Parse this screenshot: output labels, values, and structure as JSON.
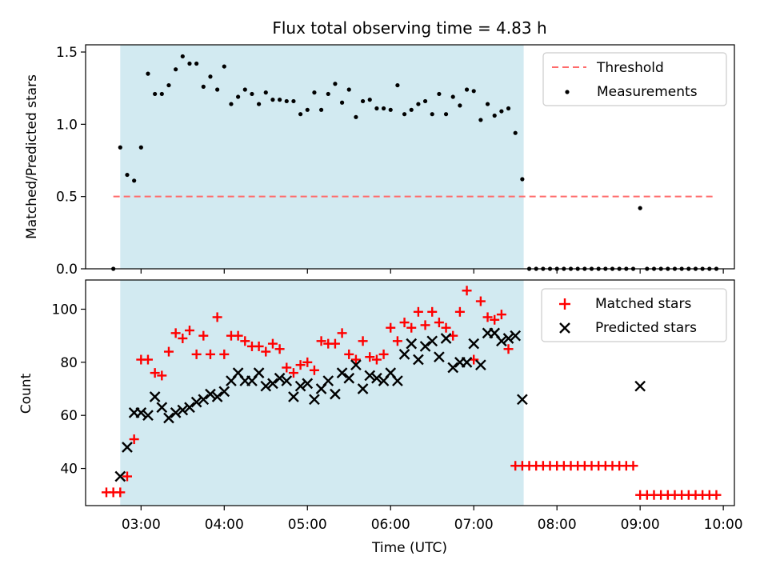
{
  "title": "Flux total observing time = 4.83 h",
  "xlabel": "Time (UTC)",
  "x_ticks": [
    "03:00",
    "04:00",
    "05:00",
    "06:00",
    "07:00",
    "08:00",
    "09:00",
    "10:00"
  ],
  "colors": {
    "shade": "#add8e6",
    "threshold": "#ff6b6b",
    "measurements": "#000000",
    "matched": "#ff0000",
    "predicted": "#000000"
  },
  "chart_data": [
    {
      "type": "scatter",
      "ylabel": "Matched/Predicted stars",
      "xlim": [
        "02:20",
        "10:08"
      ],
      "ylim": [
        0,
        1.55
      ],
      "y_ticks": [
        "0.0",
        "0.5",
        "1.0",
        "1.5"
      ],
      "shaded_span": [
        "02:45",
        "07:36"
      ],
      "legend": {
        "placement": "top-right",
        "entries": [
          "Threshold",
          "Measurements"
        ]
      },
      "threshold": {
        "name": "Threshold",
        "y": 0.5,
        "x_range": [
          "02:40",
          "09:55"
        ],
        "style": "dashed"
      },
      "series": [
        {
          "name": "Measurements",
          "marker": "dot",
          "x": [
            "02:40",
            "02:45",
            "02:50",
            "02:55",
            "03:00",
            "03:05",
            "03:10",
            "03:15",
            "03:20",
            "03:25",
            "03:30",
            "03:35",
            "03:40",
            "03:45",
            "03:50",
            "03:55",
            "04:00",
            "04:05",
            "04:10",
            "04:15",
            "04:20",
            "04:25",
            "04:30",
            "04:35",
            "04:40",
            "04:45",
            "04:50",
            "04:55",
            "05:00",
            "05:05",
            "05:10",
            "05:15",
            "05:20",
            "05:25",
            "05:30",
            "05:35",
            "05:40",
            "05:45",
            "05:50",
            "05:55",
            "06:00",
            "06:05",
            "06:10",
            "06:15",
            "06:20",
            "06:25",
            "06:30",
            "06:35",
            "06:40",
            "06:45",
            "06:50",
            "06:55",
            "07:00",
            "07:05",
            "07:10",
            "07:15",
            "07:20",
            "07:25",
            "07:30",
            "07:35",
            "07:40",
            "07:45",
            "07:50",
            "07:55",
            "08:00",
            "08:05",
            "08:10",
            "08:15",
            "08:20",
            "08:25",
            "08:30",
            "08:35",
            "08:40",
            "08:45",
            "08:50",
            "08:55",
            "09:00",
            "09:05",
            "09:10",
            "09:15",
            "09:20",
            "09:25",
            "09:30",
            "09:35",
            "09:40",
            "09:45",
            "09:50",
            "09:55"
          ],
          "y": [
            0.0,
            0.84,
            0.65,
            0.61,
            0.84,
            1.35,
            1.21,
            1.21,
            1.27,
            1.38,
            1.47,
            1.42,
            1.42,
            1.26,
            1.33,
            1.24,
            1.4,
            1.14,
            1.19,
            1.24,
            1.21,
            1.14,
            1.22,
            1.17,
            1.17,
            1.16,
            1.16,
            1.07,
            1.1,
            1.22,
            1.1,
            1.21,
            1.28,
            1.15,
            1.24,
            1.05,
            1.16,
            1.17,
            1.11,
            1.11,
            1.1,
            1.27,
            1.07,
            1.1,
            1.14,
            1.16,
            1.07,
            1.21,
            1.07,
            1.19,
            1.13,
            1.24,
            1.23,
            1.03,
            1.14,
            1.06,
            1.09,
            1.11,
            0.94,
            0.62,
            0.0,
            0.0,
            0.0,
            0.0,
            0.0,
            0.0,
            0.0,
            0.0,
            0.0,
            0.0,
            0.0,
            0.0,
            0.0,
            0.0,
            0.0,
            0.0,
            0.42,
            0.0,
            0.0,
            0.0,
            0.0,
            0.0,
            0.0,
            0.0,
            0.0,
            0.0,
            0.0,
            0.0
          ]
        }
      ]
    },
    {
      "type": "scatter",
      "ylabel": "Count",
      "xlim": [
        "02:20",
        "10:08"
      ],
      "ylim": [
        26,
        111
      ],
      "y_ticks": [
        "40",
        "60",
        "80",
        "100"
      ],
      "shaded_span": [
        "02:45",
        "07:36"
      ],
      "legend": {
        "placement": "top-right",
        "entries": [
          "Matched stars",
          "Predicted stars"
        ]
      },
      "series": [
        {
          "name": "Matched stars",
          "marker": "plus",
          "x": [
            "02:35",
            "02:40",
            "02:45",
            "02:50",
            "02:55",
            "03:00",
            "03:05",
            "03:10",
            "03:15",
            "03:20",
            "03:25",
            "03:30",
            "03:35",
            "03:40",
            "03:45",
            "03:50",
            "03:55",
            "04:00",
            "04:05",
            "04:10",
            "04:15",
            "04:20",
            "04:25",
            "04:30",
            "04:35",
            "04:40",
            "04:45",
            "04:50",
            "04:55",
            "05:00",
            "05:05",
            "05:10",
            "05:15",
            "05:20",
            "05:25",
            "05:30",
            "05:35",
            "05:40",
            "05:45",
            "05:50",
            "05:55",
            "06:00",
            "06:05",
            "06:10",
            "06:15",
            "06:20",
            "06:25",
            "06:30",
            "06:35",
            "06:40",
            "06:45",
            "06:50",
            "06:55",
            "07:00",
            "07:05",
            "07:10",
            "07:15",
            "07:20",
            "07:25",
            "07:30",
            "07:35",
            "07:40",
            "07:45",
            "07:50",
            "07:55",
            "08:00",
            "08:05",
            "08:10",
            "08:15",
            "08:20",
            "08:25",
            "08:30",
            "08:35",
            "08:40",
            "08:45",
            "08:50",
            "08:55",
            "09:00",
            "09:05",
            "09:10",
            "09:15",
            "09:20",
            "09:25",
            "09:30",
            "09:35",
            "09:40",
            "09:45",
            "09:50",
            "09:55"
          ],
          "y": [
            31,
            31,
            31,
            37,
            51,
            81,
            81,
            76,
            75,
            84,
            91,
            89,
            92,
            83,
            90,
            83,
            97,
            83,
            90,
            90,
            88,
            86,
            86,
            84,
            87,
            85,
            78,
            76,
            79,
            80,
            77,
            88,
            87,
            87,
            91,
            83,
            81,
            88,
            82,
            81,
            83,
            93,
            88,
            95,
            93,
            99,
            94,
            99,
            95,
            93,
            90,
            99,
            107,
            81,
            103,
            97,
            96,
            98,
            85,
            41,
            41,
            41,
            41,
            41,
            41,
            41,
            41,
            41,
            41,
            41,
            41,
            41,
            41,
            41,
            41,
            41,
            41,
            30,
            30,
            30,
            30,
            30,
            30,
            30,
            30,
            30,
            30,
            30,
            30
          ],
          "note_x_start": "02:35"
        },
        {
          "name": "Predicted stars",
          "marker": "x",
          "x": [
            "02:45",
            "02:50",
            "02:55",
            "03:00",
            "03:05",
            "03:10",
            "03:15",
            "03:20",
            "03:25",
            "03:30",
            "03:35",
            "03:40",
            "03:45",
            "03:50",
            "03:55",
            "04:00",
            "04:05",
            "04:10",
            "04:15",
            "04:20",
            "04:25",
            "04:30",
            "04:35",
            "04:40",
            "04:45",
            "04:50",
            "04:55",
            "05:00",
            "05:05",
            "05:10",
            "05:15",
            "05:20",
            "05:25",
            "05:30",
            "05:35",
            "05:40",
            "05:45",
            "05:50",
            "05:55",
            "06:00",
            "06:05",
            "06:10",
            "06:15",
            "06:20",
            "06:25",
            "06:30",
            "06:35",
            "06:40",
            "06:45",
            "06:50",
            "06:55",
            "07:00",
            "07:05",
            "07:10",
            "07:15",
            "07:20",
            "07:25",
            "07:30",
            "07:35",
            "09:00"
          ],
          "y": [
            37,
            48,
            61,
            61,
            60,
            67,
            63,
            59,
            61,
            62,
            63,
            65,
            66,
            68,
            67,
            69,
            73,
            76,
            73,
            73,
            76,
            71,
            72,
            74,
            73,
            67,
            71,
            72,
            66,
            70,
            73,
            68,
            76,
            74,
            79,
            70,
            75,
            74,
            73,
            76,
            73,
            83,
            87,
            81,
            86,
            88,
            82,
            89,
            78,
            80,
            80,
            87,
            79,
            91,
            91,
            88,
            89,
            90,
            66,
            71
          ]
        }
      ]
    }
  ]
}
